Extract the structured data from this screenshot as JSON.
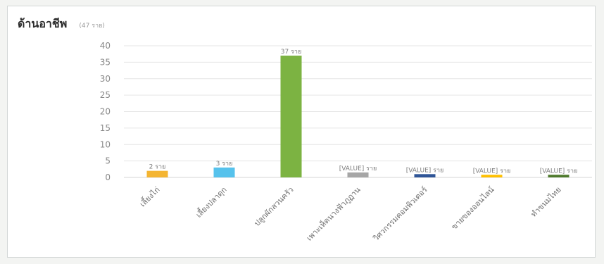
{
  "chart_data": {
    "type": "bar",
    "title": "ด้านอาชีพ",
    "subtitle": "(47 ราย)",
    "ylim": [
      0,
      40
    ],
    "yticks": [
      0,
      5,
      10,
      15,
      20,
      25,
      30,
      35,
      40
    ],
    "grid": true,
    "categories": [
      "เลี้ยงไก่",
      "เลี้ยงปลาดุก",
      "ปลูกผักสวนครัว",
      "เพาะเห็ดนางฟ้าภูฏาน",
      "วิศวกรรมคอมพิวเตอร์",
      "ขายของออนไลน์",
      "ทำขนมไทย"
    ],
    "values": [
      2,
      3,
      37,
      1.5,
      1,
      0.8,
      0.8
    ],
    "data_labels": [
      "2 ราย",
      "3 ราย",
      "37 ราย",
      "[VALUE] ราย",
      "[VALUE] ราย",
      "[VALUE] ราย",
      "[VALUE] ราย"
    ],
    "colors": [
      "#f4b532",
      "#56c2ec",
      "#7cb342",
      "#a6a6a6",
      "#2f5597",
      "#ffc000",
      "#4e7a2c"
    ]
  }
}
